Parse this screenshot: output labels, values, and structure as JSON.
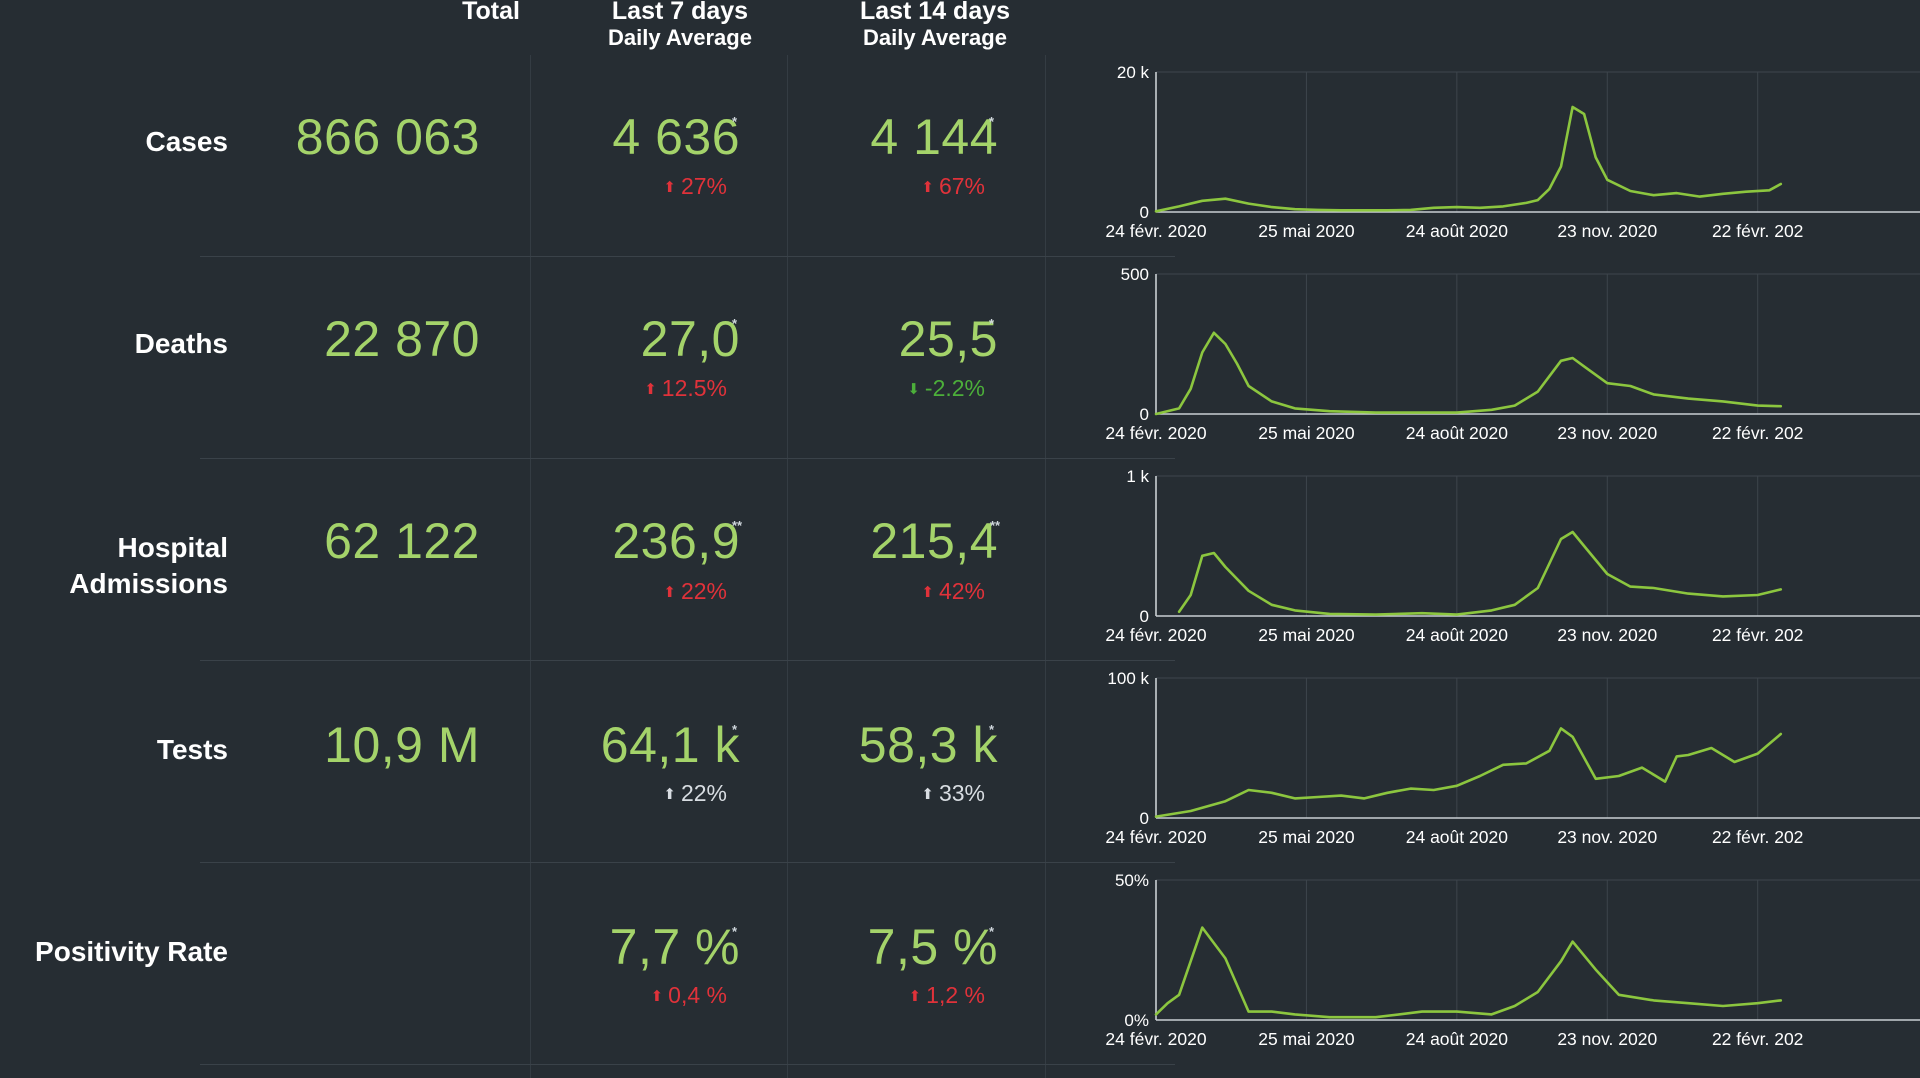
{
  "colors": {
    "background": "#262d33",
    "value_green": "#a4d36a",
    "line_green": "#8cc63f",
    "up_red": "#e0323a",
    "down_green": "#4caf3a",
    "neutral": "#d8dde2"
  },
  "headers": {
    "total": "Total",
    "last7_line1": "Last 7 days",
    "last7_line2": "Daily Average",
    "last14_line1": "Last 14 days",
    "last14_line2": "Daily Average"
  },
  "rows": [
    {
      "label": "Cases",
      "total": "866 063",
      "avg7": "4 636",
      "star7": "*",
      "change7": "27%",
      "change7_dir": "up",
      "change7_color": "red",
      "avg14": "4 144",
      "star14": "*",
      "change14": "67%",
      "change14_dir": "up",
      "change14_color": "red"
    },
    {
      "label": "Deaths",
      "total": "22 870",
      "avg7": "27,0",
      "star7": "*",
      "change7": "12.5%",
      "change7_dir": "up",
      "change7_color": "red",
      "avg14": "25,5",
      "star14": "*",
      "change14": "-2.2%",
      "change14_dir": "down",
      "change14_color": "green"
    },
    {
      "label_line1": "Hospital",
      "label_line2": "Admissions",
      "total": "62 122",
      "avg7": "236,9",
      "star7": "**",
      "change7": "22%",
      "change7_dir": "up",
      "change7_color": "red",
      "avg14": "215,4",
      "star14": "**",
      "change14": "42%",
      "change14_dir": "up",
      "change14_color": "red"
    },
    {
      "label": "Tests",
      "total": "10,9 M",
      "avg7": "64,1 k",
      "star7": "*",
      "change7": "22%",
      "change7_dir": "up",
      "change7_color": "neutral",
      "avg14": "58,3 k",
      "star14": "*",
      "change14": "33%",
      "change14_dir": "up",
      "change14_color": "neutral"
    },
    {
      "label": "Positivity Rate",
      "total": "",
      "avg7": "7,7 %",
      "star7": "*",
      "change7": "0,4 %",
      "change7_dir": "up",
      "change7_color": "red",
      "avg14": "7,5 %",
      "star14": "*",
      "change14": "1,2 %",
      "change14_dir": "up",
      "change14_color": "red"
    }
  ],
  "chart_data": [
    {
      "type": "line",
      "series_name": "Cases",
      "y_ticks": [
        "20 k",
        "0"
      ],
      "ylim": [
        0,
        20000
      ],
      "x_ticks": [
        "24 févr. 2020",
        "25 mai 2020",
        "24 août 2020",
        "23 nov. 2020",
        "22 févr. 202"
      ],
      "x": [
        "2020-02-24",
        "2020-03-09",
        "2020-03-23",
        "2020-04-06",
        "2020-04-20",
        "2020-05-04",
        "2020-05-18",
        "2020-06-01",
        "2020-06-15",
        "2020-06-29",
        "2020-07-13",
        "2020-07-27",
        "2020-08-10",
        "2020-08-24",
        "2020-09-07",
        "2020-09-21",
        "2020-10-05",
        "2020-10-12",
        "2020-10-19",
        "2020-10-26",
        "2020-11-02",
        "2020-11-09",
        "2020-11-16",
        "2020-11-23",
        "2020-12-07",
        "2020-12-21",
        "2021-01-04",
        "2021-01-18",
        "2021-02-01",
        "2021-02-15",
        "2021-03-01",
        "2021-03-08"
      ],
      "values": [
        100,
        800,
        1600,
        1900,
        1200,
        700,
        400,
        300,
        250,
        250,
        250,
        300,
        600,
        700,
        600,
        800,
        1300,
        1700,
        3300,
        6500,
        15000,
        14000,
        7800,
        4600,
        3000,
        2400,
        2700,
        2200,
        2600,
        2900,
        3100,
        4000
      ],
      "grid": true
    },
    {
      "type": "line",
      "series_name": "Deaths",
      "y_ticks": [
        "500",
        "0"
      ],
      "ylim": [
        0,
        500
      ],
      "x_ticks": [
        "24 févr. 2020",
        "25 mai 2020",
        "24 août 2020",
        "23 nov. 2020",
        "22 févr. 202"
      ],
      "x": [
        "2020-02-24",
        "2020-03-09",
        "2020-03-16",
        "2020-03-23",
        "2020-03-30",
        "2020-04-06",
        "2020-04-13",
        "2020-04-20",
        "2020-05-04",
        "2020-05-18",
        "2020-06-08",
        "2020-07-06",
        "2020-08-03",
        "2020-08-24",
        "2020-09-14",
        "2020-09-28",
        "2020-10-12",
        "2020-10-26",
        "2020-11-02",
        "2020-11-09",
        "2020-11-23",
        "2020-12-07",
        "2020-12-21",
        "2021-01-11",
        "2021-02-01",
        "2021-02-22",
        "2021-03-08"
      ],
      "values": [
        0,
        20,
        90,
        220,
        290,
        250,
        180,
        100,
        45,
        20,
        10,
        5,
        5,
        5,
        15,
        30,
        80,
        190,
        200,
        170,
        110,
        100,
        70,
        55,
        45,
        30,
        28
      ],
      "grid": true
    },
    {
      "type": "line",
      "series_name": "Hospital Admissions",
      "y_ticks": [
        "1 k",
        "0"
      ],
      "ylim": [
        0,
        1000
      ],
      "x_ticks": [
        "24 févr. 2020",
        "25 mai 2020",
        "24 août 2020",
        "23 nov. 2020",
        "22 févr. 202"
      ],
      "x": [
        "2020-03-09",
        "2020-03-16",
        "2020-03-23",
        "2020-03-30",
        "2020-04-06",
        "2020-04-20",
        "2020-05-04",
        "2020-05-18",
        "2020-06-08",
        "2020-07-06",
        "2020-08-03",
        "2020-08-24",
        "2020-09-14",
        "2020-09-28",
        "2020-10-12",
        "2020-10-26",
        "2020-11-02",
        "2020-11-09",
        "2020-11-23",
        "2020-12-07",
        "2020-12-21",
        "2021-01-11",
        "2021-02-01",
        "2021-02-22",
        "2021-03-08"
      ],
      "values": [
        30,
        150,
        430,
        450,
        350,
        180,
        80,
        40,
        15,
        10,
        20,
        10,
        40,
        80,
        200,
        550,
        600,
        500,
        300,
        210,
        200,
        160,
        140,
        150,
        190
      ],
      "grid": true
    },
    {
      "type": "line",
      "series_name": "Tests",
      "y_ticks": [
        "100 k",
        "0"
      ],
      "ylim": [
        0,
        100000
      ],
      "x_ticks": [
        "24 févr. 2020",
        "25 mai 2020",
        "24 août 2020",
        "23 nov. 2020",
        "22 févr. 202"
      ],
      "x": [
        "2020-02-24",
        "2020-03-16",
        "2020-04-06",
        "2020-04-20",
        "2020-05-04",
        "2020-05-18",
        "2020-06-01",
        "2020-06-15",
        "2020-06-29",
        "2020-07-13",
        "2020-07-27",
        "2020-08-10",
        "2020-08-24",
        "2020-09-07",
        "2020-09-21",
        "2020-10-05",
        "2020-10-19",
        "2020-10-26",
        "2020-11-02",
        "2020-11-16",
        "2020-11-30",
        "2020-12-14",
        "2020-12-28",
        "2021-01-04",
        "2021-01-11",
        "2021-01-25",
        "2021-02-08",
        "2021-02-22",
        "2021-03-08"
      ],
      "values": [
        1000,
        5000,
        12000,
        20000,
        18000,
        14000,
        15000,
        16000,
        14000,
        18000,
        21000,
        20000,
        23000,
        30000,
        38000,
        39000,
        48000,
        64000,
        58000,
        28000,
        30000,
        36000,
        26000,
        44000,
        45000,
        50000,
        40000,
        46000,
        60000
      ],
      "grid": true
    },
    {
      "type": "line",
      "series_name": "Positivity Rate",
      "y_ticks": [
        "50%",
        "0%"
      ],
      "ylim": [
        0,
        50
      ],
      "x_ticks": [
        "24 févr. 2020",
        "25 mai 2020",
        "24 août 2020",
        "23 nov. 2020",
        "22 févr. 202"
      ],
      "x": [
        "2020-02-24",
        "2020-03-02",
        "2020-03-09",
        "2020-03-23",
        "2020-04-06",
        "2020-04-20",
        "2020-05-04",
        "2020-05-18",
        "2020-06-08",
        "2020-07-06",
        "2020-08-03",
        "2020-08-24",
        "2020-09-14",
        "2020-09-28",
        "2020-10-12",
        "2020-10-26",
        "2020-11-02",
        "2020-11-16",
        "2020-11-30",
        "2020-12-21",
        "2021-01-11",
        "2021-02-01",
        "2021-02-22",
        "2021-03-08"
      ],
      "values": [
        2,
        6,
        9,
        33,
        22,
        3,
        3,
        2,
        1,
        1,
        3,
        3,
        2,
        5,
        10,
        21,
        28,
        18,
        9,
        7,
        6,
        5,
        6,
        7
      ],
      "grid": true
    }
  ]
}
